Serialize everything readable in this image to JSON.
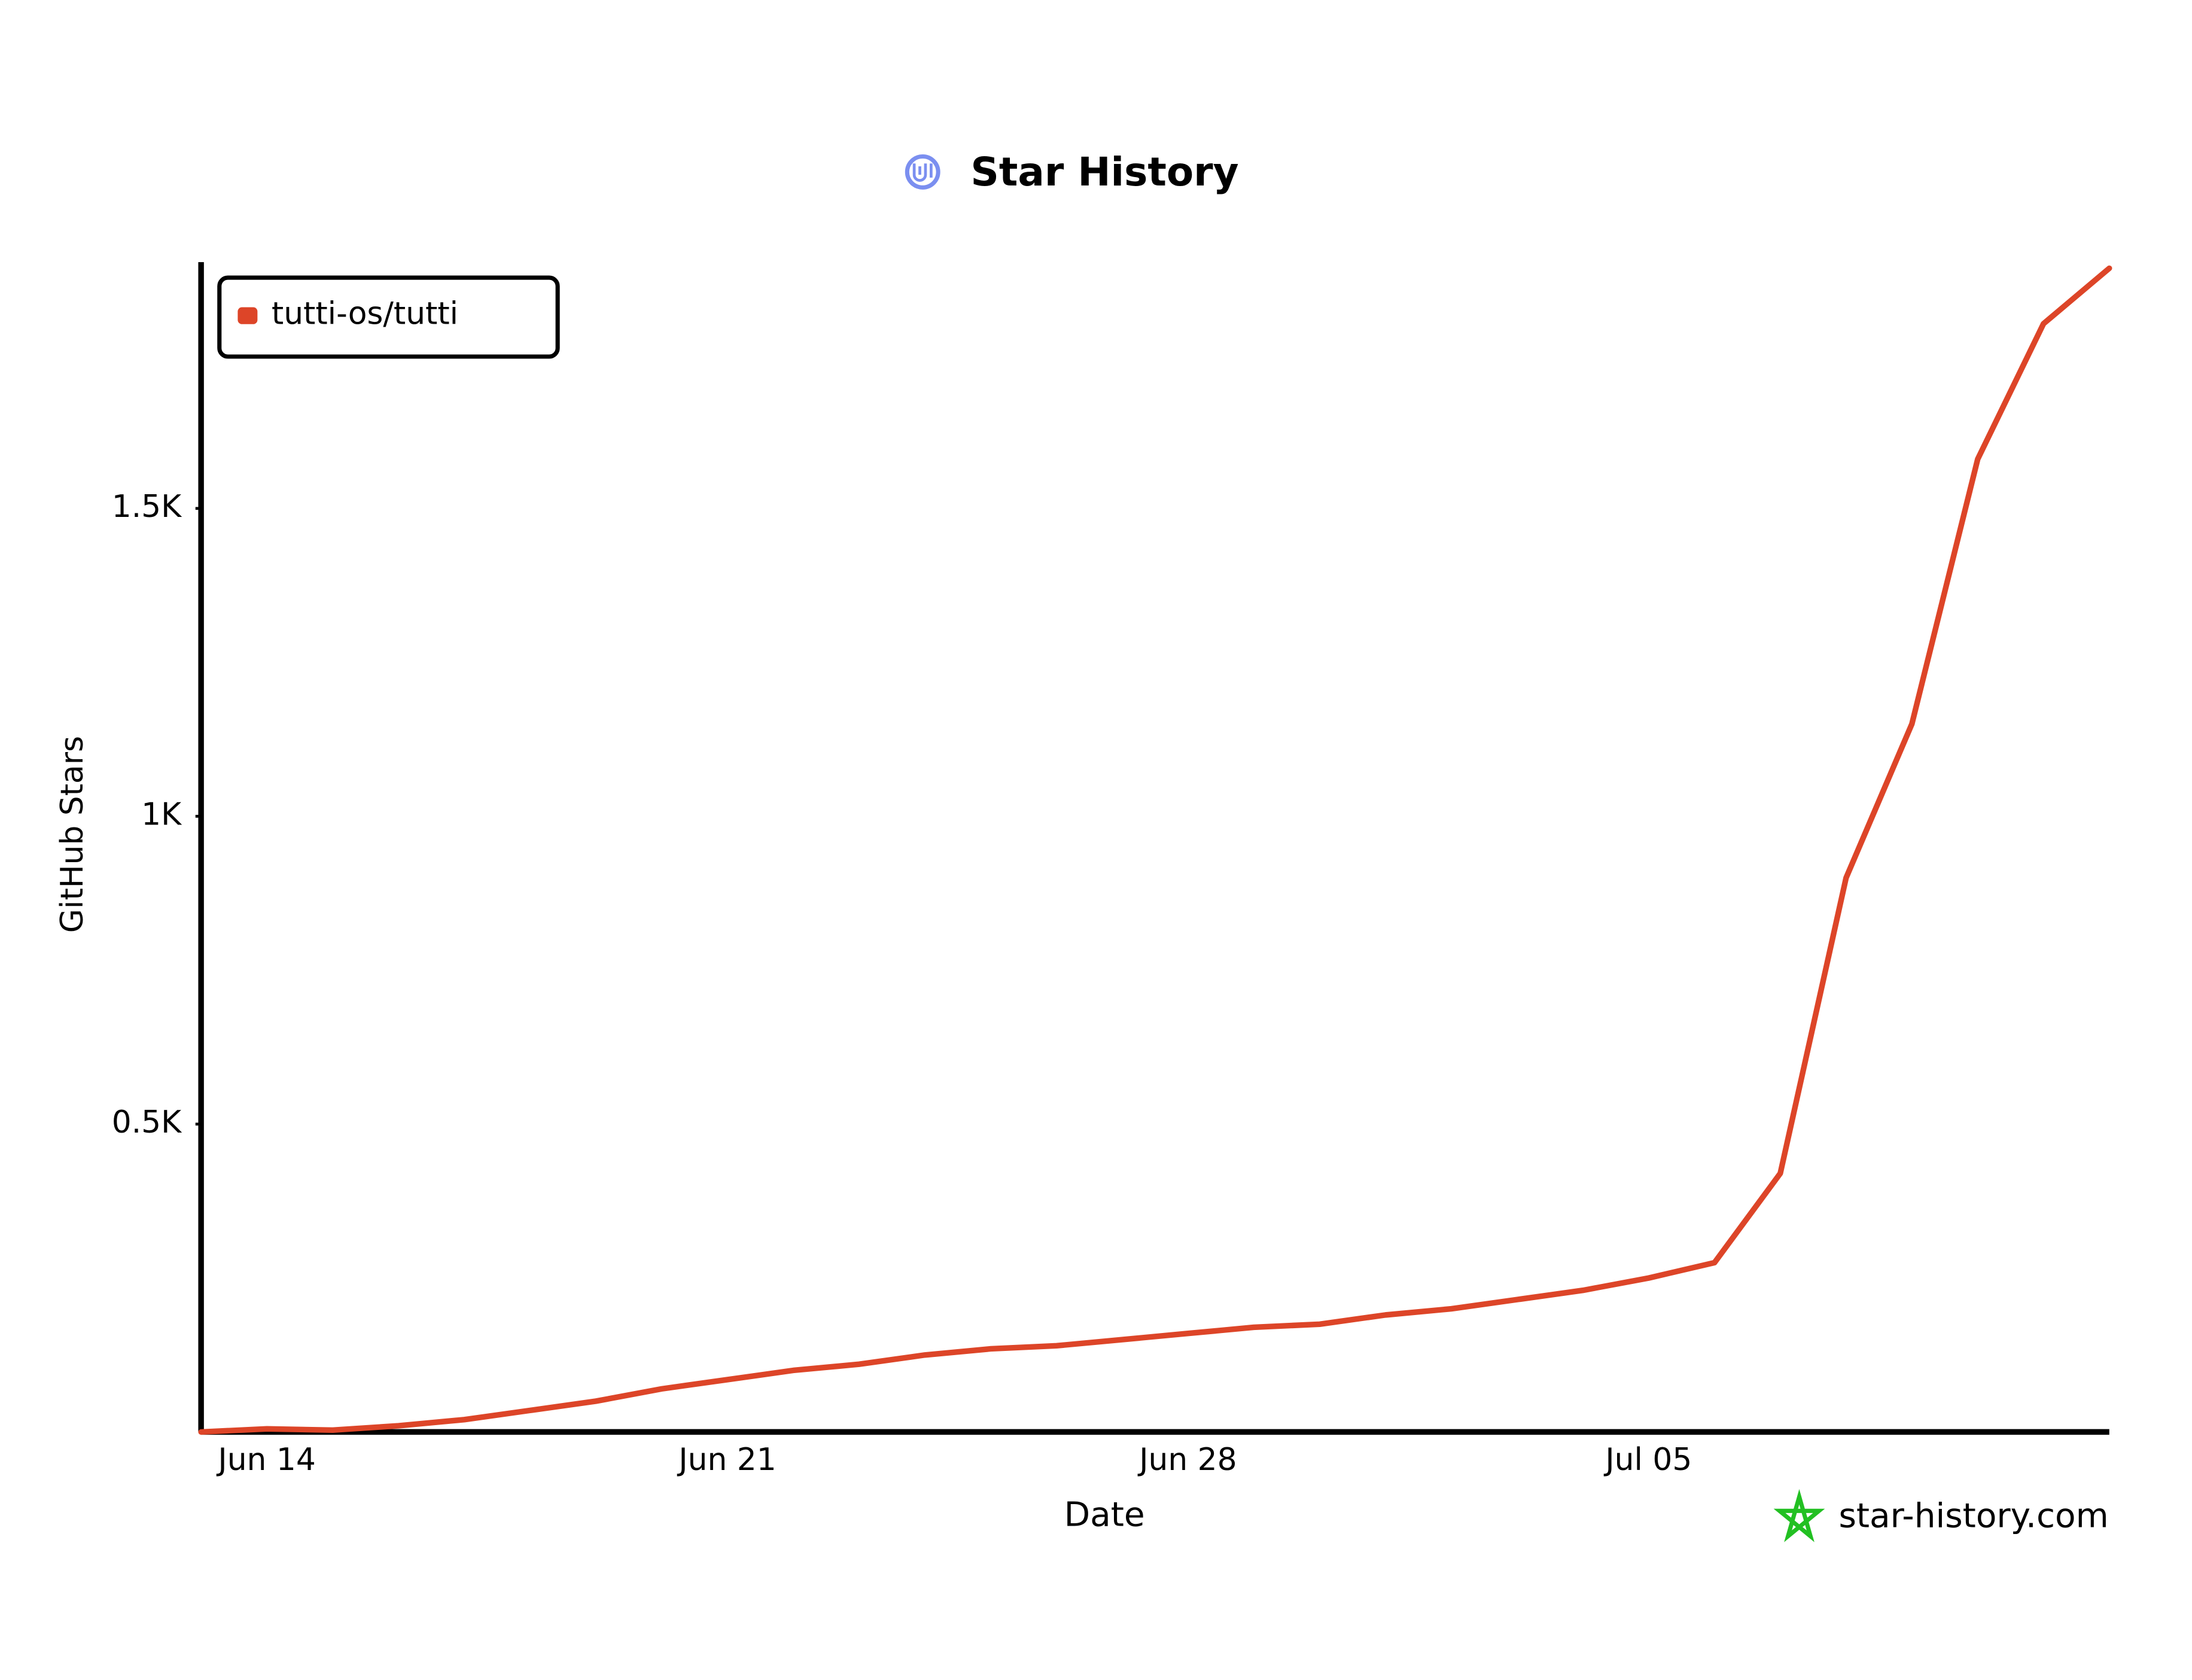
{
  "chart_data": {
    "type": "line",
    "title": "Star History",
    "x_label": "Date",
    "y_label": "GitHub Stars",
    "x": [
      "Jun 13",
      "Jun 14",
      "Jun 15",
      "Jun 16",
      "Jun 17",
      "Jun 18",
      "Jun 19",
      "Jun 20",
      "Jun 21",
      "Jun 22",
      "Jun 23",
      "Jun 24",
      "Jun 25",
      "Jun 26",
      "Jun 27",
      "Jun 28",
      "Jun 29",
      "Jun 30",
      "Jul 01",
      "Jul 02",
      "Jul 03",
      "Jul 04",
      "Jul 05",
      "Jul 06",
      "Jul 07",
      "Jul 08",
      "Jul 09",
      "Jul 10",
      "Jul 11",
      "Jul 12"
    ],
    "series": [
      {
        "name": "tutti-os/tutti",
        "color": "#dd4528",
        "values": [
          0,
          5,
          3,
          10,
          20,
          35,
          50,
          70,
          85,
          100,
          110,
          125,
          135,
          140,
          150,
          160,
          170,
          175,
          190,
          200,
          215,
          230,
          250,
          275,
          420,
          900,
          1150,
          1580,
          1800,
          1890
        ]
      }
    ],
    "xticks": [
      "Jun 14",
      "Jun 21",
      "Jun 28",
      "Jul 05"
    ],
    "ylim": [
      0,
      1900
    ],
    "yticks": [
      {
        "value": 500,
        "label": "0.5K"
      },
      {
        "value": 1000,
        "label": "1K"
      },
      {
        "value": 1500,
        "label": "1.5K"
      }
    ],
    "legend": "top-left",
    "watermark": "star-history.com"
  }
}
